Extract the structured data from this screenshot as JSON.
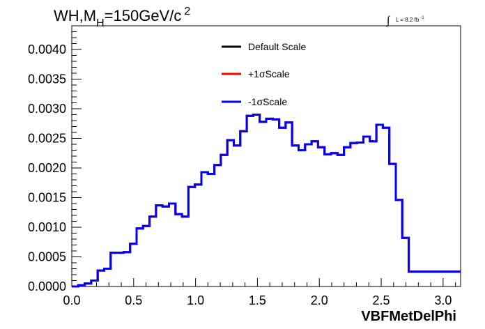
{
  "chart_data": {
    "type": "line",
    "style": "step-histogram",
    "title_main": "WH,M",
    "title_sub": "H",
    "title_rest": "=150GeV/c",
    "title_sup": "2",
    "lumi_symbol": "∫",
    "lumi_text": "L = 8.2 fb",
    "lumi_sup": "-1",
    "xlabel": "VBFMetDelPhi",
    "ylabel": "",
    "xlim": [
      0.0,
      3.1416
    ],
    "ylim": [
      0.0,
      0.0044
    ],
    "x_ticks": [
      "0.0",
      "0.5",
      "1.0",
      "1.5",
      "2.0",
      "2.5",
      "3.0"
    ],
    "y_ticks": [
      "0.0000",
      "0.0005",
      "0.0010",
      "0.0015",
      "0.0020",
      "0.0025",
      "0.0030",
      "0.0035",
      "0.0040"
    ],
    "x_tick_values": [
      0.0,
      0.5,
      1.0,
      1.5,
      2.0,
      2.5,
      3.0
    ],
    "y_tick_values": [
      0.0,
      0.0005,
      0.001,
      0.0015,
      0.002,
      0.0025,
      0.003,
      0.0035,
      0.004
    ],
    "bin_width": 0.0524,
    "bin_low_edges": [
      0.0,
      0.0524,
      0.1047,
      0.1571,
      0.2094,
      0.2618,
      0.3142,
      0.3665,
      0.4189,
      0.4712,
      0.5236,
      0.576,
      0.6283,
      0.6807,
      0.733,
      0.7854,
      0.8378,
      0.8901,
      0.9425,
      0.9948,
      1.0472,
      1.0996,
      1.1519,
      1.2043,
      1.2566,
      1.309,
      1.3614,
      1.4137,
      1.4661,
      1.5184,
      1.5708,
      1.6232,
      1.6755,
      1.7279,
      1.7802,
      1.8326,
      1.885,
      1.9373,
      1.9897,
      2.042,
      2.0944,
      2.1468,
      2.1991,
      2.2515,
      2.3038,
      2.3562,
      2.4086,
      2.4609,
      2.5133,
      2.5656,
      2.618,
      2.6704,
      2.7227,
      2.7751,
      2.8274,
      2.8798,
      2.9322,
      2.9845,
      3.0369,
      3.0892
    ],
    "series": [
      {
        "name": "Default Scale",
        "color": "#000000",
        "values": [
          0.0,
          2e-05,
          5e-05,
          0.0001,
          0.00027,
          0.0003,
          0.00057,
          0.00057,
          0.00058,
          0.00072,
          0.00098,
          0.00102,
          0.00118,
          0.00137,
          0.00135,
          0.0014,
          0.00122,
          0.00118,
          0.00168,
          0.00172,
          0.00193,
          0.0019,
          0.00205,
          0.00222,
          0.00247,
          0.00238,
          0.00262,
          0.00288,
          0.0029,
          0.00278,
          0.00283,
          0.00282,
          0.00268,
          0.00277,
          0.00238,
          0.0023,
          0.0024,
          0.00245,
          0.00235,
          0.00223,
          0.00225,
          0.00222,
          0.00235,
          0.00242,
          0.00243,
          0.00253,
          0.00245,
          0.00273,
          0.00268,
          0.00207,
          0.00146,
          0.00082,
          0.00025,
          0.00025,
          0.00025,
          0.00025,
          0.00025,
          0.00025,
          0.00025,
          0.00025
        ]
      },
      {
        "name": "+1σScale",
        "color": "#ff0000",
        "values": [
          0.0,
          2e-05,
          5e-05,
          0.0001,
          0.00027,
          0.0003,
          0.00057,
          0.00057,
          0.00058,
          0.00072,
          0.00098,
          0.00102,
          0.00118,
          0.00137,
          0.00135,
          0.0014,
          0.00122,
          0.00118,
          0.00168,
          0.00172,
          0.00193,
          0.0019,
          0.00205,
          0.00222,
          0.00247,
          0.00238,
          0.00262,
          0.00288,
          0.0029,
          0.00278,
          0.00283,
          0.00282,
          0.00268,
          0.00277,
          0.00238,
          0.0023,
          0.0024,
          0.00245,
          0.00235,
          0.00223,
          0.00225,
          0.00222,
          0.00235,
          0.00242,
          0.00243,
          0.00253,
          0.00245,
          0.00273,
          0.00268,
          0.00207,
          0.00146,
          0.00082,
          0.00025,
          0.00025,
          0.00025,
          0.00025,
          0.00025,
          0.00025,
          0.00025,
          0.00025
        ]
      },
      {
        "name": "-1σScale",
        "color": "#0000ff",
        "values": [
          0.0,
          2e-05,
          5e-05,
          0.0001,
          0.00027,
          0.0003,
          0.00057,
          0.00057,
          0.00058,
          0.00072,
          0.00098,
          0.00102,
          0.00118,
          0.00137,
          0.00135,
          0.0014,
          0.00122,
          0.00118,
          0.00168,
          0.00172,
          0.00193,
          0.0019,
          0.00205,
          0.00222,
          0.00247,
          0.00238,
          0.00262,
          0.00288,
          0.0029,
          0.00278,
          0.00283,
          0.00282,
          0.00268,
          0.00277,
          0.00238,
          0.0023,
          0.0024,
          0.00245,
          0.00235,
          0.00223,
          0.00225,
          0.00222,
          0.00235,
          0.00242,
          0.00243,
          0.00253,
          0.00245,
          0.00273,
          0.00268,
          0.00207,
          0.00146,
          0.00082,
          0.00025,
          0.00025,
          0.00025,
          0.00025,
          0.00025,
          0.00025,
          0.00025,
          0.00025
        ]
      }
    ],
    "legend_position": "top-center",
    "grid": false
  }
}
